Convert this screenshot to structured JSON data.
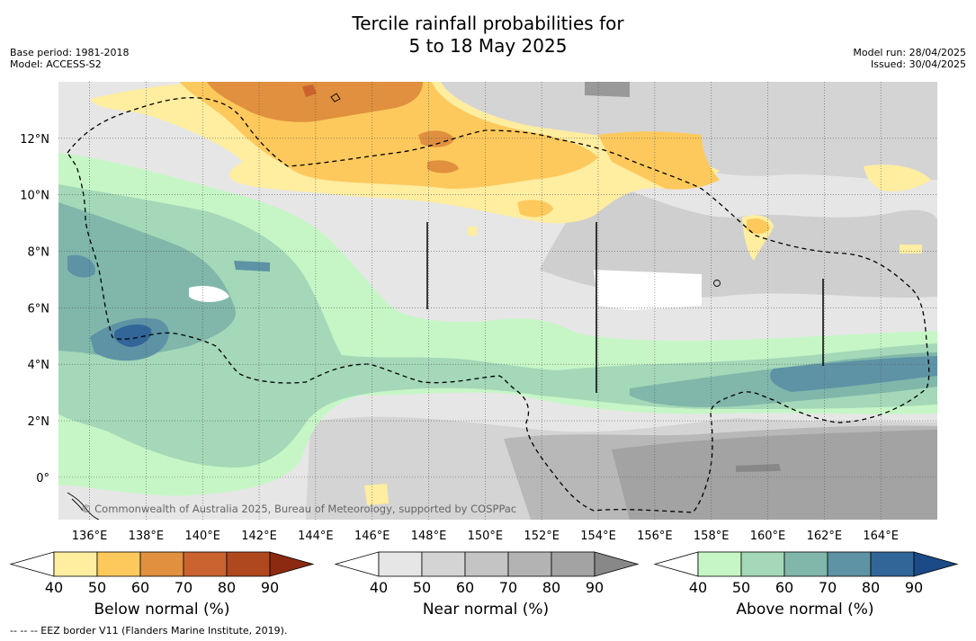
{
  "title": {
    "line1": "Tercile rainfall probabilities for",
    "line2": "5 to 18 May 2025"
  },
  "meta": {
    "base_period": "Base period: 1981-2018",
    "model": "Model: ACCESS-S2",
    "model_run": "Model run: 28/04/2025",
    "issued": "Issued: 30/04/2025"
  },
  "map": {
    "lon_range": [
      134.9,
      166.0
    ],
    "lat_range": [
      -1.5,
      14.0
    ],
    "lon_ticks": [
      "136°E",
      "138°E",
      "140°E",
      "142°E",
      "144°E",
      "146°E",
      "148°E",
      "150°E",
      "152°E",
      "154°E",
      "156°E",
      "158°E",
      "160°E",
      "162°E",
      "164°E"
    ],
    "lon_values": [
      136,
      138,
      140,
      142,
      144,
      146,
      148,
      150,
      152,
      154,
      156,
      158,
      160,
      162,
      164
    ],
    "lat_ticks": [
      "12°N",
      "10°N",
      "8°N",
      "6°N",
      "4°N",
      "2°N",
      "0°"
    ],
    "lat_values": [
      12,
      10,
      8,
      6,
      4,
      2,
      0
    ],
    "grid": true,
    "copyright": "© Commonwealth of Australia 2025, Bureau of Meteorology, supported by COSPPac"
  },
  "colorbars": [
    {
      "label": "Below normal (%)",
      "ticks": [
        "40",
        "50",
        "60",
        "70",
        "80",
        "90"
      ],
      "colors": [
        "#ffffff",
        "#ffeda0",
        "#fdc95c",
        "#e0903e",
        "#cb6330",
        "#b0481f",
        "#8b2a10"
      ]
    },
    {
      "label": "Near normal (%)",
      "ticks": [
        "40",
        "50",
        "60",
        "70",
        "80",
        "90"
      ],
      "colors": [
        "#ffffff",
        "#e6e6e6",
        "#d4d4d4",
        "#c4c4c4",
        "#b3b3b3",
        "#a3a3a3",
        "#888888"
      ]
    },
    {
      "label": "Above normal (%)",
      "ticks": [
        "40",
        "50",
        "60",
        "70",
        "80",
        "90"
      ],
      "colors": [
        "#ffffff",
        "#c6f6c6",
        "#a4d8b8",
        "#80b7aa",
        "#5d93a5",
        "#326598",
        "#1b4a86"
      ]
    }
  ],
  "footnote": "--  --  -- EEZ border V11 (Flanders Marine Institute, 2019)."
}
